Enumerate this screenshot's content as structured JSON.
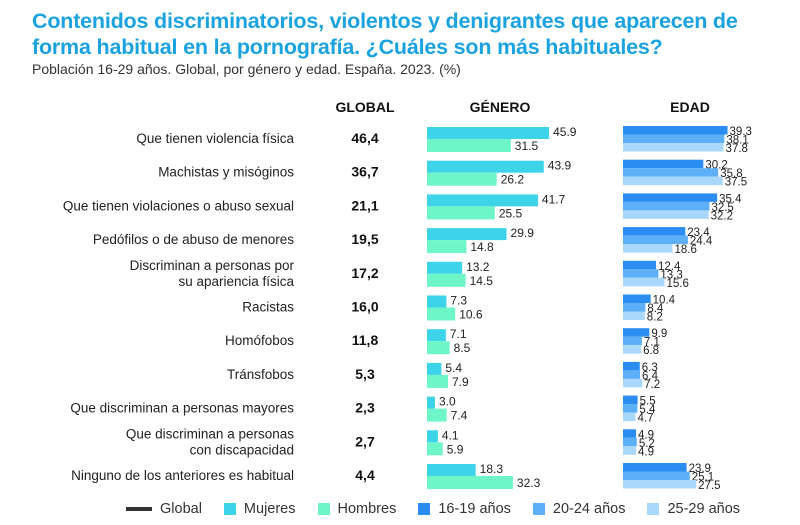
{
  "title": "Contenidos discriminatorios, violentos y denigrantes que aparecen de forma habitual en la pornografía. ¿Cuáles son más habituales?",
  "subtitle": "Población 16-29 años. Global, por género y edad. España. 2023. (%)",
  "columns": {
    "global": "GLOBAL",
    "genero": "GÉNERO",
    "edad": "EDAD"
  },
  "colors": {
    "global": "#333333",
    "mujeres": "#3dd4ea",
    "hombres": "#6ef5c8",
    "age_16_19": "#2b8cf2",
    "age_20_24": "#5db0f7",
    "age_25_29": "#a9d8fc",
    "title": "#1aa3e0"
  },
  "chart_data": {
    "type": "bar",
    "orientation": "horizontal",
    "title": "Contenidos discriminatorios, violentos y denigrantes que aparecen de forma habitual en la pornografía. ¿Cuáles son más habituales?",
    "subtitle": "Población 16-29 años. Global, por género y edad. España. 2023. (%)",
    "categories": [
      [
        "Que tienen violencia física"
      ],
      [
        "Machistas y misóginos"
      ],
      [
        "Que tienen violaciones o abuso sexual"
      ],
      [
        "Pedófilos o de abuso de menores"
      ],
      [
        "Discriminan a personas por",
        "su apariencia física"
      ],
      [
        "Racistas"
      ],
      [
        "Homófobos"
      ],
      [
        "Tránsfobos"
      ],
      [
        "Que discriminan a personas mayores"
      ],
      [
        "Que discriminan a personas",
        "con discapacidad"
      ],
      [
        "Ninguno de los anteriores es habitual"
      ]
    ],
    "global": [
      "46,4",
      "36,7",
      "21,1",
      "19,5",
      "17,2",
      "16,0",
      "11,8",
      "5,3",
      "2,3",
      "2,7",
      "4,4"
    ],
    "series": [
      {
        "name": "Mujeres",
        "group": "genero",
        "values": [
          45.9,
          43.9,
          41.7,
          29.9,
          13.2,
          7.3,
          7.1,
          5.4,
          3.0,
          4.1,
          18.3
        ]
      },
      {
        "name": "Hombres",
        "group": "genero",
        "values": [
          31.5,
          26.2,
          25.5,
          14.8,
          14.5,
          10.6,
          8.5,
          7.9,
          7.4,
          5.9,
          32.3
        ]
      },
      {
        "name": "16-19 años",
        "group": "edad",
        "values": [
          39.3,
          30.2,
          35.4,
          23.4,
          12.4,
          10.4,
          9.9,
          6.3,
          5.5,
          4.9,
          23.9
        ]
      },
      {
        "name": "20-24 años",
        "group": "edad",
        "values": [
          38.1,
          35.8,
          32.5,
          24.4,
          13.3,
          8.4,
          7.1,
          6.4,
          5.4,
          5.2,
          25.1
        ]
      },
      {
        "name": "25-29 años",
        "group": "edad",
        "values": [
          37.8,
          37.5,
          32.2,
          18.6,
          15.6,
          8.2,
          6.8,
          7.2,
          4.7,
          4.9,
          27.5
        ]
      }
    ],
    "legend": [
      "Global",
      "Mujeres",
      "Hombres",
      "16-19 años",
      "20-24 años",
      "25-29 años"
    ],
    "legend_position": "bottom",
    "xlim": [
      0,
      50
    ],
    "grid": false
  }
}
